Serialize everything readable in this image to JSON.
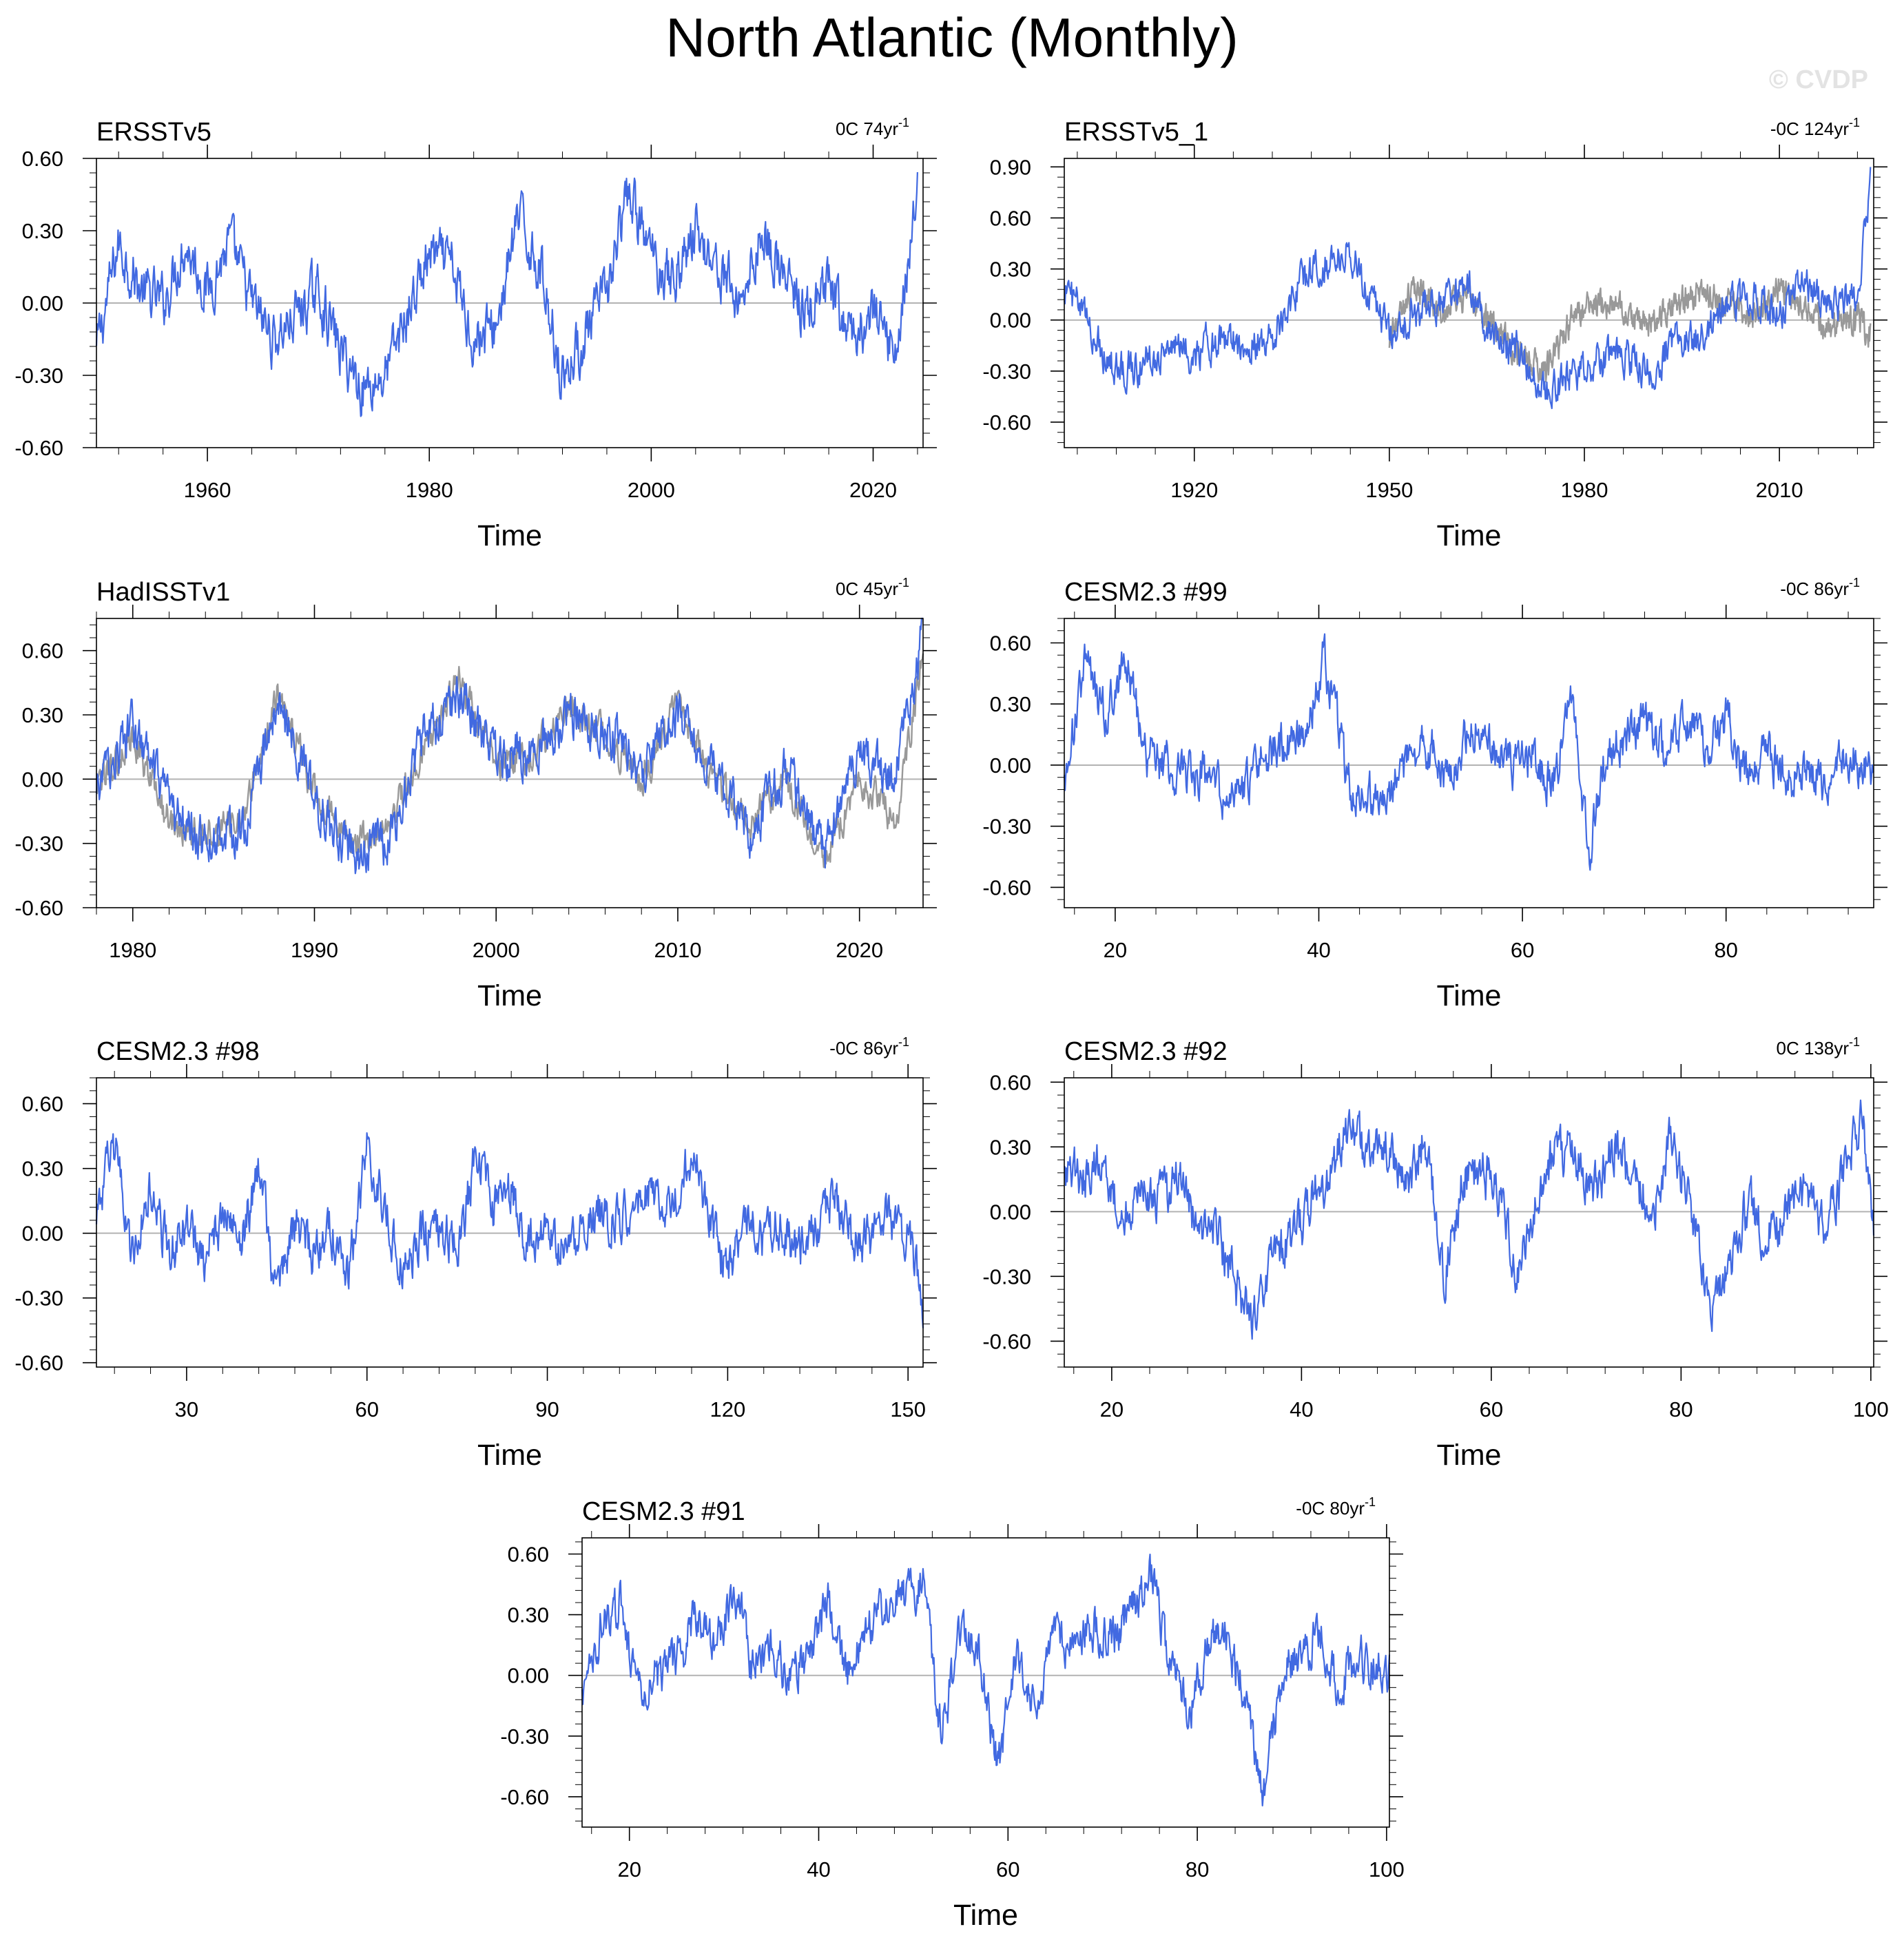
{
  "title": "North Atlantic (Monthly)",
  "watermark": "© CVDP",
  "colors": {
    "series": "#4169e1",
    "reference": "#999999",
    "zero_line": "#b3b3b3",
    "frame": "#000000"
  },
  "chart_data": [
    {
      "type": "line",
      "name": "ERSSTv5",
      "trend": "0C 74yr",
      "trend_sup": "-1",
      "xlabel": "Time",
      "xlim": [
        1950,
        2024.5
      ],
      "ylim": [
        -0.6,
        0.6
      ],
      "xticks": [
        "1960",
        "1980",
        "2000",
        "2020"
      ],
      "xtick_values": [
        1960,
        1980,
        2000,
        2020
      ],
      "yticks": [
        "0.60",
        "0.30",
        "0.00",
        "-0.30",
        "-0.60"
      ],
      "ytick_values": [
        0.6,
        0.3,
        0.0,
        -0.3,
        -0.6
      ],
      "series": [
        {
          "role": "main",
          "x": [
            1950,
            1952,
            1954,
            1956,
            1958,
            1960,
            1962,
            1964,
            1966,
            1968,
            1970,
            1972,
            1974,
            1976,
            1978,
            1980,
            1982,
            1984,
            1986,
            1988,
            1990,
            1992,
            1994,
            1996,
            1998,
            2000,
            2002,
            2004,
            2006,
            2008,
            2010,
            2012,
            2014,
            2016,
            2018,
            2020,
            2022,
            2024
          ],
          "values": [
            -0.2,
            0.25,
            0.05,
            0.0,
            0.25,
            0.05,
            0.25,
            0.0,
            -0.15,
            -0.05,
            0.05,
            -0.2,
            -0.35,
            -0.3,
            -0.05,
            0.2,
            0.15,
            -0.15,
            -0.1,
            0.35,
            0.15,
            -0.3,
            -0.15,
            0.05,
            0.45,
            0.2,
            0.1,
            0.3,
            0.15,
            0.0,
            0.3,
            0.1,
            -0.05,
            0.05,
            -0.15,
            -0.05,
            -0.2,
            0.45
          ]
        }
      ]
    },
    {
      "type": "line",
      "name": "ERSSTv5_1",
      "trend": "-0C 124yr",
      "trend_sup": "-1",
      "xlabel": "Time",
      "xlim": [
        1900,
        2024.5
      ],
      "ylim": [
        -0.75,
        0.95
      ],
      "xticks": [
        "1920",
        "1950",
        "1980",
        "2010"
      ],
      "xtick_values": [
        1920,
        1950,
        1980,
        2010
      ],
      "yticks": [
        "0.90",
        "0.60",
        "0.30",
        "0.00",
        "-0.30",
        "-0.60"
      ],
      "ytick_values": [
        0.9,
        0.6,
        0.3,
        0.0,
        -0.3,
        -0.6
      ],
      "series": [
        {
          "role": "reference",
          "x": [
            1950,
            1954,
            1958,
            1962,
            1966,
            1970,
            1974,
            1978,
            1982,
            1986,
            1990,
            1994,
            1998,
            2002,
            2006,
            2010,
            2014,
            2018,
            2022,
            2024
          ],
          "values": [
            -0.1,
            0.2,
            0.05,
            0.15,
            -0.05,
            -0.2,
            -0.3,
            0.0,
            0.1,
            0.05,
            -0.05,
            0.1,
            0.15,
            0.1,
            0.0,
            0.2,
            0.05,
            -0.05,
            0.0,
            -0.1
          ]
        },
        {
          "role": "main",
          "x": [
            1900,
            1904,
            1908,
            1912,
            1916,
            1920,
            1924,
            1928,
            1932,
            1936,
            1940,
            1944,
            1948,
            1950,
            1954,
            1958,
            1962,
            1966,
            1970,
            1974,
            1978,
            1982,
            1986,
            1990,
            1994,
            1998,
            2002,
            2006,
            2010,
            2014,
            2018,
            2022,
            2024
          ],
          "values": [
            0.2,
            -0.05,
            -0.3,
            -0.25,
            -0.15,
            -0.2,
            -0.1,
            -0.15,
            -0.1,
            0.2,
            0.35,
            0.4,
            0.1,
            -0.1,
            0.05,
            0.1,
            0.2,
            -0.1,
            -0.2,
            -0.45,
            -0.3,
            -0.25,
            -0.2,
            -0.3,
            -0.1,
            -0.1,
            0.1,
            0.15,
            0.05,
            0.2,
            0.05,
            0.2,
            0.8
          ]
        }
      ]
    },
    {
      "type": "line",
      "name": "HadISSTv1",
      "trend": "0C 45yr",
      "trend_sup": "-1",
      "xlabel": "Time",
      "xlim": [
        1978,
        2023.5
      ],
      "ylim": [
        -0.6,
        0.75
      ],
      "xticks": [
        "1980",
        "1990",
        "2000",
        "2010",
        "2020"
      ],
      "xtick_values": [
        1980,
        1990,
        2000,
        2010,
        2020
      ],
      "yticks": [
        "0.60",
        "0.30",
        "0.00",
        "-0.30",
        "-0.60"
      ],
      "ytick_values": [
        0.6,
        0.3,
        0.0,
        -0.3,
        -0.6
      ],
      "series": [
        {
          "role": "reference",
          "x": [
            1978,
            1980,
            1982,
            1984,
            1986,
            1988,
            1990,
            1992,
            1994,
            1996,
            1998,
            2000,
            2002,
            2004,
            2006,
            2008,
            2010,
            2012,
            2014,
            2016,
            2018,
            2020,
            2022,
            2023.5
          ],
          "values": [
            -0.05,
            0.2,
            -0.2,
            -0.25,
            -0.2,
            0.4,
            -0.05,
            -0.3,
            -0.25,
            0.15,
            0.45,
            0.05,
            0.1,
            0.35,
            0.2,
            0.0,
            0.35,
            0.0,
            -0.2,
            0.0,
            -0.4,
            0.0,
            -0.2,
            0.6
          ]
        },
        {
          "role": "main",
          "x": [
            1978,
            1980,
            1982,
            1984,
            1986,
            1988,
            1990,
            1992,
            1994,
            1996,
            1998,
            2000,
            2002,
            2004,
            2006,
            2008,
            2010,
            2012,
            2014,
            2016,
            2018,
            2020,
            2022,
            2023.5
          ],
          "values": [
            -0.05,
            0.25,
            -0.15,
            -0.3,
            -0.25,
            0.35,
            -0.1,
            -0.35,
            -0.3,
            0.2,
            0.4,
            0.1,
            0.15,
            0.3,
            0.25,
            0.05,
            0.3,
            0.05,
            -0.25,
            0.05,
            -0.35,
            0.1,
            0.0,
            0.7
          ]
        }
      ]
    },
    {
      "type": "line",
      "name": "CESM2.3 #99",
      "trend": "-0C 86yr",
      "trend_sup": "-1",
      "xlabel": "Time",
      "xlim": [
        15,
        94.5
      ],
      "ylim": [
        -0.7,
        0.72
      ],
      "xticks": [
        "20",
        "40",
        "60",
        "80"
      ],
      "xtick_values": [
        20,
        40,
        60,
        80
      ],
      "yticks": [
        "0.60",
        "0.30",
        "0.00",
        "-0.30",
        "-0.60"
      ],
      "ytick_values": [
        0.6,
        0.3,
        0.0,
        -0.3,
        -0.6
      ],
      "series": [
        {
          "role": "main",
          "x": [
            15,
            17,
            19,
            21,
            23,
            25,
            27,
            29,
            31,
            33,
            35,
            37,
            39,
            40.5,
            43,
            45,
            47,
            49,
            51,
            53,
            55,
            57,
            59,
            61,
            63,
            65,
            66.5,
            68,
            70,
            72,
            74,
            76,
            78,
            80,
            82,
            84,
            86,
            88,
            90,
            92,
            94.5
          ],
          "values": [
            -0.1,
            0.5,
            0.25,
            0.55,
            0.05,
            0.0,
            -0.05,
            -0.05,
            -0.2,
            -0.1,
            0.05,
            0.1,
            0.15,
            0.55,
            -0.1,
            -0.15,
            -0.1,
            0.05,
            0.1,
            -0.05,
            0.2,
            0.1,
            0.0,
            0.05,
            -0.1,
            0.35,
            -0.45,
            0.0,
            0.15,
            0.2,
            0.05,
            0.25,
            0.1,
            0.25,
            -0.05,
            0.05,
            -0.05,
            0.0,
            -0.1,
            0.05,
            -0.05
          ]
        }
      ]
    },
    {
      "type": "line",
      "name": "CESM2.3 #98",
      "trend": "-0C 86yr",
      "trend_sup": "-1",
      "xlabel": "Time",
      "xlim": [
        15,
        152.5
      ],
      "ylim": [
        -0.62,
        0.72
      ],
      "xticks": [
        "30",
        "60",
        "90",
        "120",
        "150"
      ],
      "xtick_values": [
        30,
        60,
        90,
        120,
        150
      ],
      "yticks": [
        "0.60",
        "0.30",
        "0.00",
        "-0.30",
        "-0.60"
      ],
      "ytick_values": [
        0.6,
        0.3,
        0.0,
        -0.3,
        -0.6
      ],
      "series": [
        {
          "role": "main",
          "x": [
            15,
            18,
            21,
            24,
            27,
            30,
            33,
            36,
            39,
            42,
            45,
            48,
            51,
            54,
            57,
            60,
            63,
            66,
            69,
            72,
            75,
            78,
            81,
            84,
            87,
            90,
            93,
            96,
            99,
            102,
            105,
            108,
            111,
            114,
            117,
            120,
            123,
            126,
            129,
            132,
            135,
            138,
            141,
            144,
            147,
            150,
            152.5
          ],
          "values": [
            0.1,
            0.4,
            -0.1,
            0.2,
            -0.1,
            0.05,
            -0.15,
            0.1,
            -0.05,
            0.3,
            -0.3,
            0.05,
            -0.1,
            0.05,
            -0.2,
            0.4,
            0.1,
            -0.15,
            0.0,
            0.05,
            -0.1,
            0.35,
            0.1,
            0.2,
            -0.05,
            0.1,
            -0.1,
            0.05,
            0.1,
            0.05,
            0.15,
            0.2,
            0.1,
            0.4,
            0.05,
            -0.2,
            0.1,
            0.0,
            0.05,
            -0.1,
            0.05,
            0.15,
            -0.05,
            0.0,
            0.1,
            -0.05,
            -0.3
          ]
        }
      ]
    },
    {
      "type": "line",
      "name": "CESM2.3 #92",
      "trend": "0C 138yr",
      "trend_sup": "-1",
      "xlabel": "Time",
      "xlim": [
        15,
        100.3
      ],
      "ylim": [
        -0.72,
        0.62
      ],
      "xticks": [
        "20",
        "40",
        "60",
        "80",
        "100"
      ],
      "xtick_values": [
        20,
        40,
        60,
        80,
        100
      ],
      "yticks": [
        "0.60",
        "0.30",
        "0.00",
        "-0.30",
        "-0.60"
      ],
      "ytick_values": [
        0.6,
        0.3,
        0.0,
        -0.3,
        -0.6
      ],
      "series": [
        {
          "role": "main",
          "x": [
            15,
            17,
            19,
            21,
            23,
            25,
            27,
            29,
            31,
            33,
            35,
            37,
            39,
            41,
            43,
            45,
            47,
            49,
            51,
            53,
            55,
            57,
            59,
            61,
            63,
            65,
            67,
            69,
            71,
            73,
            75,
            77,
            79,
            81,
            83,
            85,
            87,
            89,
            91,
            93,
            95,
            97,
            99,
            100.3
          ],
          "values": [
            0.2,
            0.15,
            0.3,
            -0.05,
            0.1,
            0.05,
            0.15,
            -0.1,
            -0.05,
            -0.35,
            -0.5,
            -0.2,
            -0.15,
            0.05,
            0.15,
            0.4,
            0.25,
            0.3,
            0.1,
            0.35,
            -0.3,
            0.15,
            0.2,
            0.05,
            -0.3,
            0.1,
            0.3,
            0.25,
            0.1,
            0.3,
            0.15,
            0.0,
            0.35,
            0.05,
            -0.45,
            -0.25,
            0.05,
            -0.1,
            0.0,
            0.1,
            -0.05,
            0.15,
            0.45,
            -0.1
          ]
        }
      ]
    },
    {
      "type": "line",
      "name": "CESM2.3 #91",
      "trend": "-0C 80yr",
      "trend_sup": "-1",
      "xlabel": "Time",
      "xlim": [
        15,
        100.3
      ],
      "ylim": [
        -0.75,
        0.68
      ],
      "xticks": [
        "20",
        "40",
        "60",
        "80",
        "100"
      ],
      "xtick_values": [
        20,
        40,
        60,
        80,
        100
      ],
      "yticks": [
        "0.60",
        "0.30",
        "0.00",
        "-0.30",
        "-0.60"
      ],
      "ytick_values": [
        0.6,
        0.3,
        0.0,
        -0.3,
        -0.6
      ],
      "series": [
        {
          "role": "main",
          "x": [
            15,
            17,
            19,
            21,
            23,
            25,
            27,
            29,
            31,
            33,
            35,
            37,
            39,
            41,
            43,
            45,
            47,
            49,
            51,
            53,
            55,
            57,
            59,
            61,
            63,
            65,
            67,
            69,
            71,
            73,
            75,
            77,
            79,
            81,
            83,
            85,
            87,
            89,
            91,
            93,
            95,
            97,
            99,
            100.3
          ],
          "values": [
            -0.15,
            0.25,
            0.35,
            -0.05,
            0.0,
            0.05,
            0.3,
            0.1,
            0.45,
            0.05,
            0.15,
            0.0,
            0.1,
            0.35,
            0.0,
            0.25,
            0.3,
            0.4,
            0.45,
            -0.3,
            0.25,
            0.1,
            -0.45,
            0.1,
            -0.15,
            0.2,
            0.15,
            0.25,
            0.2,
            0.3,
            0.5,
            0.1,
            -0.2,
            0.15,
            0.2,
            -0.1,
            -0.55,
            0.0,
            0.1,
            0.2,
            -0.05,
            0.1,
            0.05,
            0.0
          ]
        }
      ]
    }
  ]
}
